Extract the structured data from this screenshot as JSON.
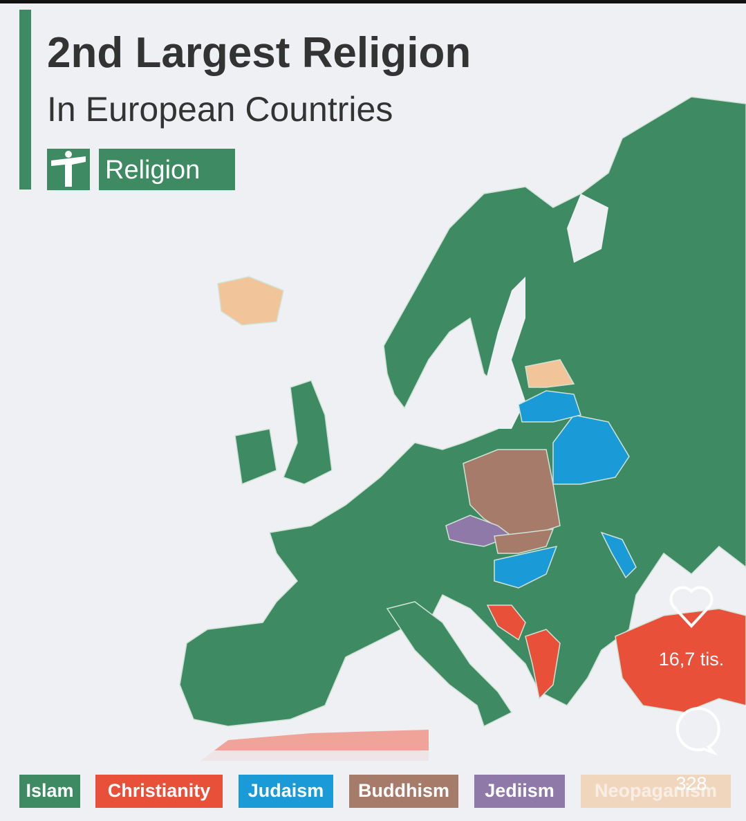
{
  "header": {
    "title": "2nd Largest Religion",
    "subtitle": "In European Countries",
    "badge": "Religion"
  },
  "legend": [
    {
      "label": "Islam",
      "color": "#3e8a62"
    },
    {
      "label": "Christianity",
      "color": "#e8503a"
    },
    {
      "label": "Judaism",
      "color": "#1a9ad6"
    },
    {
      "label": "Buddhism",
      "color": "#a67b6a"
    },
    {
      "label": "Jediism",
      "color": "#8e79a8"
    },
    {
      "label": "Neopaganism",
      "color": "#f2c49a"
    }
  ],
  "overlay": {
    "likes": "16,7 tis.",
    "comments": "328"
  }
}
